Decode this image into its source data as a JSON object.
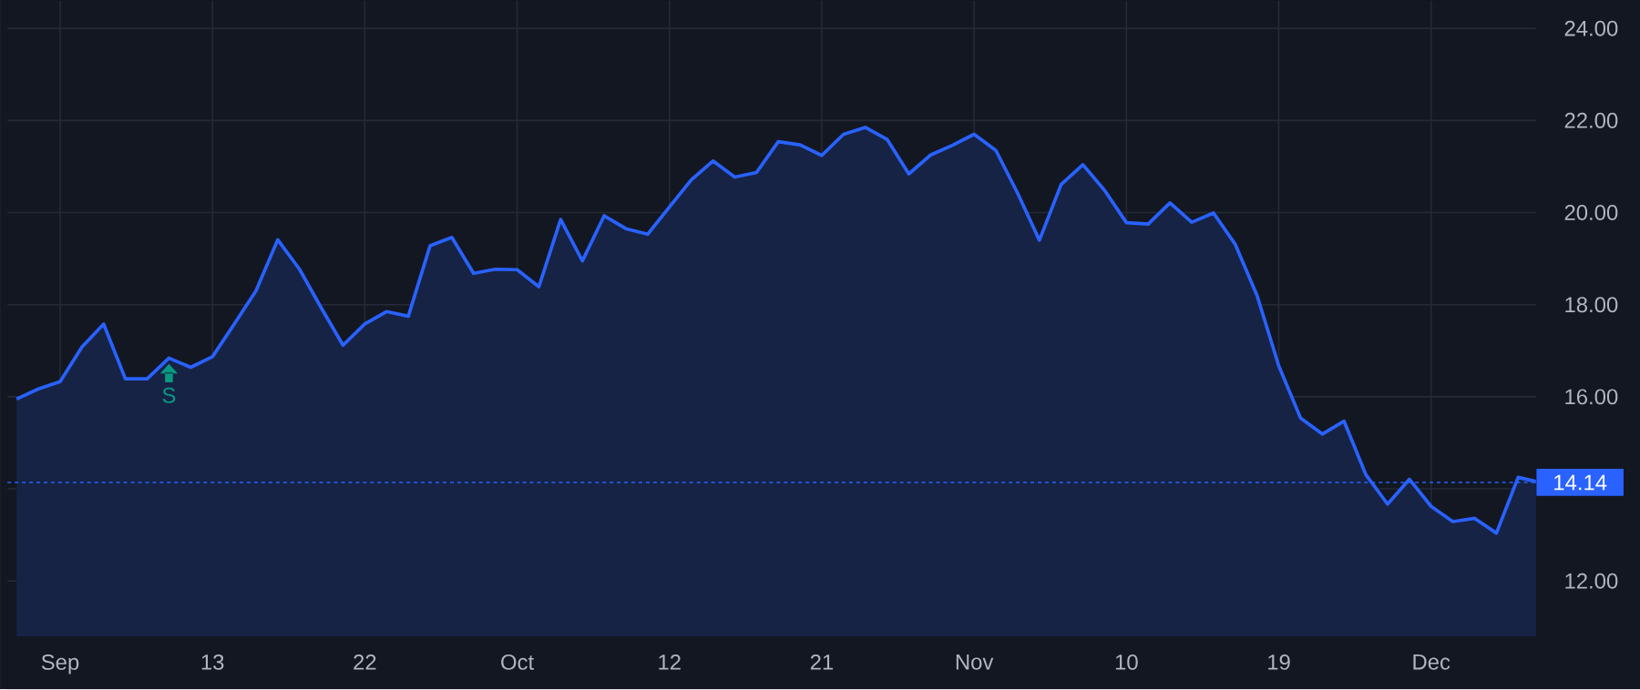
{
  "chart_data": {
    "type": "area",
    "categories": [
      null,
      null,
      "Sep",
      null,
      null,
      null,
      null,
      null,
      null,
      "13",
      null,
      null,
      null,
      null,
      null,
      null,
      "22",
      null,
      null,
      null,
      null,
      null,
      null,
      "Oct",
      null,
      null,
      null,
      null,
      null,
      null,
      "12",
      null,
      null,
      null,
      null,
      null,
      null,
      "21",
      null,
      null,
      null,
      null,
      null,
      null,
      "Nov",
      null,
      null,
      null,
      null,
      null,
      null,
      "10",
      null,
      null,
      null,
      null,
      null,
      null,
      "19",
      null,
      null,
      null,
      null,
      null,
      null,
      "Dec",
      null,
      null,
      null,
      null,
      null
    ],
    "series": [
      {
        "color": "#2962ff",
        "values": [
          15.95,
          16.17,
          16.33,
          17.08,
          17.58,
          16.39,
          16.39,
          16.84,
          16.64,
          16.87,
          17.58,
          18.3,
          19.41,
          18.77,
          17.93,
          17.12,
          17.58,
          17.85,
          17.75,
          19.28,
          19.46,
          18.68,
          18.77,
          18.76,
          18.39,
          19.85,
          18.95,
          19.93,
          19.65,
          19.53,
          20.12,
          20.71,
          21.12,
          20.77,
          20.87,
          21.54,
          21.47,
          21.24,
          21.7,
          21.85,
          21.59,
          20.84,
          21.25,
          21.46,
          21.7,
          21.35,
          20.42,
          19.4,
          20.61,
          21.04,
          20.48,
          19.78,
          19.75,
          20.21,
          19.79,
          19.99,
          19.31,
          18.2,
          16.67,
          15.54,
          15.19,
          15.47,
          14.31,
          13.67,
          14.21,
          13.62,
          13.29,
          13.36,
          13.04,
          14.25,
          14.14
        ]
      }
    ],
    "ylim": [
      10.8,
      24.6
    ],
    "yticks": [
      {
        "value": 12,
        "label": "12.00"
      },
      {
        "value": 14,
        "label": null
      },
      {
        "value": 16,
        "label": "16.00"
      },
      {
        "value": 18,
        "label": "18.00"
      },
      {
        "value": 20,
        "label": "20.00"
      },
      {
        "value": 22,
        "label": "22.00"
      },
      {
        "value": 24,
        "label": "24.00"
      }
    ],
    "grid": true,
    "ref_lines": [
      {
        "axis": "y",
        "value": 14.14,
        "label": "14.14",
        "color": "#2962ff",
        "line_style": "dotted"
      }
    ],
    "annotations": [
      {
        "text": "S",
        "y": 16.84
      }
    ]
  }
}
